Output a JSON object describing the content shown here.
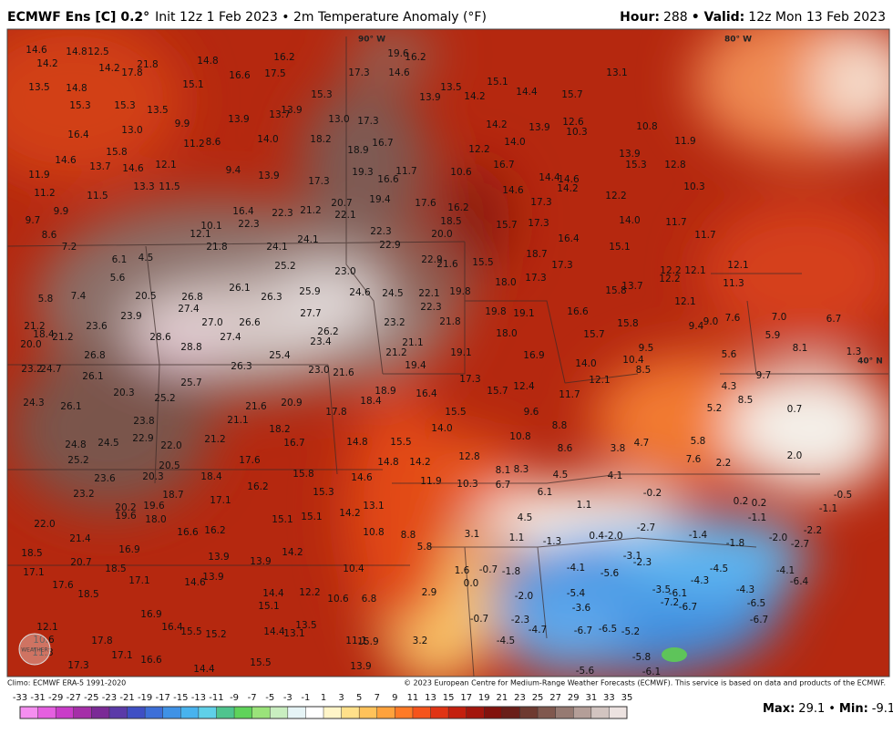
{
  "header": {
    "title": "ECMWF Ens [C] 0.2°",
    "subtitle": "Init 12z 1 Feb 2023 • 2m Temperature Anomaly (°F)",
    "hour_label": "Hour:",
    "hour": "288",
    "valid_label": "• Valid:",
    "valid": "12z Mon 13 Feb 2023"
  },
  "map": {
    "geo_labels": [
      "90° W",
      "80° W",
      "40° N"
    ],
    "labels": [
      "14.6",
      "14.2",
      "12.5",
      "14.8",
      "14.2",
      "17.8",
      "21.8",
      "14.8",
      "16.2",
      "19.6",
      "16.2",
      "13.5",
      "14.8",
      "15.1",
      "16.6",
      "17.5",
      "17.3",
      "14.6",
      "13.1",
      "15.3",
      "15.3",
      "13.5",
      "15.3",
      "13.5",
      "15.1",
      "14.4",
      "13.9",
      "14.2",
      "15.7",
      "16.4",
      "13.0",
      "9.9",
      "13.9",
      "13.7",
      "13.9",
      "13.0",
      "17.3",
      "14.2",
      "13.9",
      "12.6",
      "10.3",
      "10.8",
      "11.2",
      "8.6",
      "14.0",
      "18.2",
      "16.7",
      "14.0",
      "12.2",
      "11.9",
      "14.6",
      "15.8",
      "18.9",
      "13.9",
      "15.3",
      "12.8",
      "13.7",
      "14.6",
      "12.1",
      "9.4",
      "13.9",
      "19.3",
      "11.7",
      "10.6",
      "16.7",
      "14.4",
      "14.6",
      "11.9",
      "13.3",
      "11.5",
      "17.3",
      "16.6",
      "14.2",
      "10.3",
      "11.2",
      "11.5",
      "14.6",
      "20.7",
      "19.4",
      "17.6",
      "16.2",
      "17.3",
      "12.2",
      "9.9",
      "12.1",
      "16.4",
      "22.3",
      "21.2",
      "22.1",
      "18.5",
      "15.7",
      "17.3",
      "14.0",
      "11.7",
      "9.7",
      "10.1",
      "22.3",
      "22.3",
      "20.0",
      "16.4",
      "11.7",
      "8.6",
      "7.2",
      "21.8",
      "24.1",
      "24.1",
      "22.9",
      "15.1",
      "6.1",
      "4.5",
      "25.2",
      "22.9",
      "21.6",
      "15.5",
      "18.7",
      "17.3",
      "12.2",
      "12.1",
      "12.1",
      "5.6",
      "23.0",
      "17.3",
      "18.0",
      "12.2",
      "26.1",
      "5.8",
      "7.4",
      "20.5",
      "26.8",
      "26.3",
      "25.9",
      "24.6",
      "24.5",
      "22.1",
      "19.8",
      "15.8",
      "13.7",
      "11.3",
      "27.4",
      "22.3",
      "19.8",
      "19.1",
      "16.6",
      "12.1",
      "23.9",
      "27.7",
      "21.8",
      "15.8",
      "9.4",
      "9.0",
      "21.2",
      "23.6",
      "27.0",
      "26.6",
      "23.2",
      "7.6",
      "7.0",
      "6.7",
      "18.4",
      "28.6",
      "27.4",
      "26.2",
      "18.0",
      "15.7",
      "5.9",
      "20.0",
      "21.2",
      "28.8",
      "23.4",
      "21.1",
      "9.5",
      "8.1",
      "26.8",
      "25.4",
      "21.2",
      "19.1",
      "16.9",
      "10.4",
      "14.0",
      "5.6",
      "1.3",
      "23.2",
      "24.7",
      "26.3",
      "23.0",
      "21.6",
      "19.4",
      "8.5",
      "26.1",
      "25.7",
      "17.3",
      "12.1",
      "9.7",
      "20.3",
      "25.2",
      "18.9",
      "16.4",
      "15.7",
      "12.4",
      "11.7",
      "4.3",
      "24.3",
      "26.1",
      "20.9",
      "21.6",
      "18.4",
      "8.5",
      "5.2",
      "0.7",
      "17.8",
      "15.5",
      "23.8",
      "21.1",
      "9.6",
      "8.8",
      "18.2",
      "14.0",
      "10.8",
      "16.7",
      "14.8",
      "15.5",
      "12.8",
      "8.6",
      "3.8",
      "4.7",
      "5.8",
      "24.8",
      "24.5",
      "22.9",
      "22.0",
      "21.2",
      "25.2",
      "17.6",
      "14.8",
      "14.2",
      "7.6",
      "2.2",
      "2.0",
      "20.5",
      "8.1",
      "8.3",
      "4.5",
      "23.6",
      "20.3",
      "18.4",
      "15.8",
      "14.6",
      "4.1",
      "23.2",
      "18.7",
      "16.2",
      "15.3",
      "11.9",
      "10.3",
      "6.7",
      "6.1",
      "17.1",
      "13.1",
      "1.1",
      "0.2",
      "0.2",
      "20.2",
      "19.6",
      "18.0",
      "19.6",
      "14.2",
      "15.1",
      "15.1",
      "4.5",
      "-0.2",
      "-0.5",
      "-1.1",
      "-1.1",
      "22.0",
      "16.6",
      "16.2",
      "10.8",
      "8.8",
      "3.1",
      "1.1",
      "0.4-2.0",
      "-2.7",
      "-1.4",
      "-1.8",
      "-2.0",
      "-2.2",
      "-2.7",
      "21.4",
      "16.9",
      "13.9",
      "14.2",
      "5.8",
      "-1.3",
      "18.5",
      "20.7",
      "13.9",
      "10.4",
      "1.6",
      "-0.7",
      "-1.8",
      "-3.1",
      "-2.3",
      "-4.1",
      "-5.6",
      "-4.5",
      "-4.1",
      "17.1",
      "18.5",
      "17.1",
      "14.6",
      "13.9",
      "0.0",
      "-4.3",
      "-6.4",
      "17.6",
      "14.4",
      "12.2",
      "10.6",
      "6.8",
      "2.9",
      "-2.0",
      "-5.4",
      "-3.5",
      "-4.3",
      "18.5",
      "15.1",
      "-6.1",
      "-7.2",
      "-6.7",
      "-3.6",
      "-6.5",
      "16.9",
      "-0.7",
      "-2.3",
      "-4.7",
      "-6.7",
      "12.1",
      "17.8",
      "16.4",
      "15.5",
      "14.4",
      "13.1",
      "13.5",
      "3.2",
      "-6.7",
      "-6.5",
      "-5.2",
      "-4.5",
      "15.2",
      "11.1",
      "15.9",
      "10.6",
      "17.3",
      "17.1",
      "16.6",
      "15.5",
      "11.3",
      "13.9",
      "-5.8",
      "-5.6",
      "-6.1",
      "14.4"
    ]
  },
  "footer": {
    "climo": "Climo: ECMWF ERA-5 1991-2020",
    "copyright": "© 2023 European Centre for Medium-Range Weather Forecasts (ECMWF). This service is based on data and products of the ECMWF.",
    "logo": "WEATHER"
  },
  "colorbar": {
    "ticks": [
      -33,
      -31,
      -29,
      -27,
      -25,
      -23,
      -21,
      -19,
      -17,
      -15,
      -13,
      -11,
      -9,
      -7,
      -5,
      -3,
      -1,
      1,
      3,
      5,
      7,
      9,
      11,
      13,
      15,
      17,
      19,
      21,
      23,
      25,
      27,
      29,
      31,
      33,
      35
    ],
    "colors": [
      "#f58ef0",
      "#e55fe0",
      "#c93cc8",
      "#a52fa8",
      "#7b2a96",
      "#5b3aa8",
      "#3f4fc4",
      "#3d6fd8",
      "#3f92e6",
      "#48b3ee",
      "#5fd0e8",
      "#4fc48e",
      "#5fd35a",
      "#9ae37a",
      "#c9eec0",
      "#e6f4f6",
      "#ffffff",
      "#fff5c8",
      "#ffe08a",
      "#ffc25a",
      "#ffa23c",
      "#ff7a26",
      "#f5541c",
      "#e03414",
      "#c4200e",
      "#a3160c",
      "#82120c",
      "#6a1e18",
      "#6e3a30",
      "#80584e",
      "#967a72",
      "#b49e98",
      "#d2c4c0",
      "#ece2e0"
    ]
  },
  "stats": {
    "max_label": "Max:",
    "max": "29.1",
    "min_label": "Min:",
    "min": "-9.1"
  }
}
